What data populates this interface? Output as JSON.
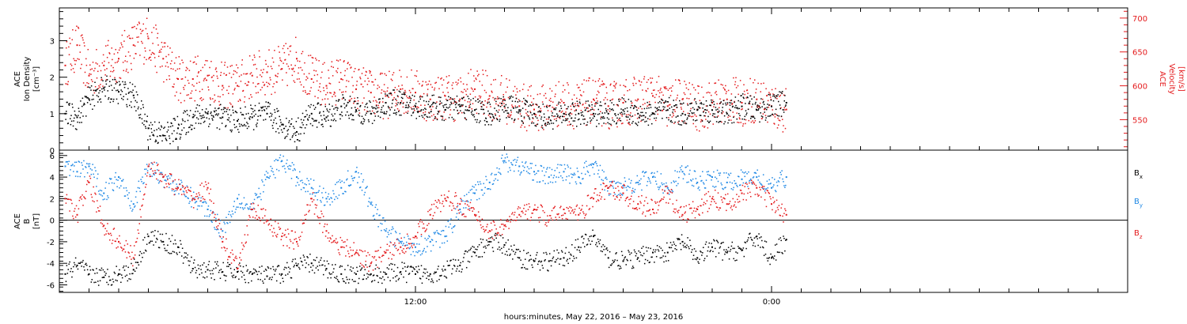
{
  "footer": {
    "xlabel": "hours:minutes, May 22, 2016 – May 23, 2016"
  },
  "chart_data": [
    {
      "type": "scatter",
      "panel": "plasma",
      "ylabel_left": [
        "ACE",
        "Ion Density",
        "[cm⁻³]"
      ],
      "ylabel_right": [
        "ACE",
        "Velocity",
        "[km/s]"
      ],
      "xlim_hours": [
        0,
        36
      ],
      "ylim_left": [
        0,
        3.9
      ],
      "ylim_right": [
        505,
        715
      ],
      "yticks_left": [
        0,
        1,
        2,
        3
      ],
      "yticks_right": [
        550,
        600,
        650,
        700
      ],
      "colors": {
        "density": "#000000",
        "velocity": "#e41a1c"
      },
      "series": [
        {
          "axis": "left",
          "color": "#000000",
          "x": [
            0.2,
            0.6,
            1.0,
            1.5,
            2.0,
            2.5,
            3.0,
            3.5,
            4.0,
            4.5,
            5.0,
            5.5,
            6.0,
            6.5,
            7.0,
            7.5,
            8.0,
            8.5,
            9.0,
            9.5,
            10.0,
            10.5,
            11.0,
            11.5,
            12.0,
            12.5,
            13.0,
            13.5,
            14.0,
            14.5,
            15.0,
            15.5,
            16.0,
            16.5,
            17.0,
            17.5,
            18.0,
            18.5,
            19.0,
            19.5,
            20.0,
            20.5,
            21.0,
            21.5,
            22.0,
            22.5,
            23.0,
            23.5,
            24.0,
            24.5
          ],
          "values": [
            1.0,
            0.9,
            1.4,
            1.7,
            1.6,
            1.5,
            0.6,
            0.4,
            0.6,
            0.9,
            1.0,
            0.9,
            0.8,
            0.9,
            1.0,
            0.7,
            0.5,
            1.0,
            0.9,
            1.2,
            1.1,
            1.0,
            1.3,
            1.3,
            1.2,
            1.2,
            1.1,
            1.2,
            1.1,
            1.0,
            1.2,
            1.1,
            1.0,
            0.9,
            1.0,
            1.0,
            1.0,
            1.0,
            1.1,
            1.0,
            1.0,
            1.1,
            1.0,
            1.1,
            1.1,
            1.0,
            1.2,
            1.1,
            1.2,
            1.3
          ]
        },
        {
          "axis": "right",
          "color": "#e41a1c",
          "x": [
            0.2,
            0.6,
            1.0,
            1.5,
            2.0,
            2.5,
            3.0,
            3.5,
            4.0,
            4.5,
            5.0,
            5.5,
            6.0,
            6.5,
            7.0,
            7.5,
            8.0,
            8.5,
            9.0,
            9.5,
            10.0,
            10.5,
            11.0,
            11.5,
            12.0,
            12.5,
            13.0,
            13.5,
            14.0,
            14.5,
            15.0,
            15.5,
            16.0,
            16.5,
            17.0,
            17.5,
            18.0,
            18.5,
            19.0,
            19.5,
            20.0,
            20.5,
            21.0,
            21.5,
            22.0,
            22.5,
            23.0,
            23.5,
            24.0,
            24.5
          ],
          "values": [
            630,
            660,
            615,
            630,
            640,
            660,
            670,
            640,
            610,
            610,
            615,
            600,
            600,
            615,
            620,
            625,
            640,
            610,
            600,
            610,
            595,
            590,
            585,
            595,
            590,
            580,
            585,
            580,
            595,
            585,
            580,
            570,
            565,
            570,
            575,
            570,
            580,
            570,
            575,
            580,
            585,
            570,
            580,
            565,
            575,
            580,
            575,
            580,
            570,
            565
          ]
        }
      ]
    },
    {
      "type": "scatter",
      "panel": "magnetic-field",
      "ylabel_left": [
        "ACE",
        "B",
        "[nT]"
      ],
      "xlim_hours": [
        0,
        36
      ],
      "ylim": [
        -6.7,
        6.5
      ],
      "yticks": [
        -6,
        -4,
        -2,
        0,
        2,
        4,
        6
      ],
      "xticks": [
        {
          "hour": 12,
          "label": "12:00"
        },
        {
          "hour": 24,
          "label": "0:00"
        }
      ],
      "legend_placement": "right",
      "series": [
        {
          "name": "Bx",
          "color": "#000000",
          "x": [
            0.2,
            0.6,
            1.0,
            1.5,
            2.0,
            2.5,
            3.0,
            3.5,
            4.0,
            4.5,
            5.0,
            5.5,
            6.0,
            6.5,
            7.0,
            7.5,
            8.0,
            8.5,
            9.0,
            9.5,
            10.0,
            10.5,
            11.0,
            11.5,
            12.0,
            12.5,
            13.0,
            13.5,
            14.0,
            14.5,
            15.0,
            15.5,
            16.0,
            16.5,
            17.0,
            17.5,
            18.0,
            18.5,
            19.0,
            19.5,
            20.0,
            20.5,
            21.0,
            21.5,
            22.0,
            22.5,
            23.0,
            23.5,
            24.0,
            24.5
          ],
          "values": [
            -5.0,
            -4.2,
            -5.0,
            -5.3,
            -5.0,
            -4.6,
            -1.5,
            -2.0,
            -2.5,
            -4.5,
            -4.6,
            -4.8,
            -4.8,
            -5.0,
            -5.2,
            -5.0,
            -4.2,
            -4.0,
            -4.5,
            -5.0,
            -5.0,
            -5.0,
            -5.0,
            -4.8,
            -5.0,
            -5.0,
            -4.6,
            -4.2,
            -3.0,
            -2.0,
            -2.3,
            -3.5,
            -3.8,
            -3.8,
            -3.5,
            -2.5,
            -1.5,
            -3.5,
            -3.8,
            -3.5,
            -3.0,
            -3.0,
            -2.0,
            -3.5,
            -2.5,
            -3.0,
            -2.8,
            -1.5,
            -3.5,
            -1.8
          ]
        },
        {
          "name": "By",
          "color": "#1e88e5",
          "x": [
            0.2,
            0.6,
            1.0,
            1.5,
            2.0,
            2.5,
            3.0,
            3.5,
            4.0,
            4.5,
            5.0,
            5.5,
            6.0,
            6.5,
            7.0,
            7.5,
            8.0,
            8.5,
            9.0,
            9.5,
            10.0,
            10.5,
            11.0,
            11.5,
            12.0,
            12.5,
            13.0,
            13.5,
            14.0,
            14.5,
            15.0,
            15.5,
            16.0,
            16.5,
            17.0,
            17.5,
            18.0,
            18.5,
            19.0,
            19.5,
            20.0,
            20.5,
            21.0,
            21.5,
            22.0,
            22.5,
            23.0,
            23.5,
            24.0,
            24.5
          ],
          "values": [
            5.0,
            4.5,
            5.0,
            2.5,
            4.0,
            1.5,
            5.0,
            4.0,
            3.0,
            2.0,
            1.0,
            -1.0,
            2.0,
            1.0,
            4.0,
            5.5,
            4.0,
            3.0,
            2.0,
            3.0,
            4.5,
            1.5,
            -1.0,
            -2.0,
            -2.5,
            -2.0,
            -1.5,
            1.0,
            2.5,
            3.5,
            5.5,
            5.0,
            4.5,
            4.0,
            4.5,
            4.0,
            5.2,
            3.0,
            3.2,
            3.5,
            4.0,
            3.0,
            4.5,
            3.5,
            4.0,
            3.5,
            3.8,
            4.0,
            3.0,
            4.0
          ]
        },
        {
          "name": "Bz",
          "color": "#e41a1c",
          "x": [
            0.2,
            0.6,
            1.0,
            1.5,
            2.0,
            2.5,
            3.0,
            3.5,
            4.0,
            4.5,
            5.0,
            5.5,
            6.0,
            6.5,
            7.0,
            7.5,
            8.0,
            8.5,
            9.0,
            9.5,
            10.0,
            10.5,
            11.0,
            11.5,
            12.0,
            12.5,
            13.0,
            13.5,
            14.0,
            14.5,
            15.0,
            15.5,
            16.0,
            16.5,
            17.0,
            17.5,
            18.0,
            18.5,
            19.0,
            19.5,
            20.0,
            20.5,
            21.0,
            21.5,
            22.0,
            22.5,
            23.0,
            23.5,
            24.0,
            24.5
          ],
          "values": [
            2.0,
            0.5,
            3.5,
            -0.5,
            -2.0,
            -3.5,
            5.0,
            4.0,
            3.0,
            2.0,
            3.0,
            -2.0,
            -4.5,
            1.0,
            0.0,
            -1.5,
            -2.0,
            2.0,
            -1.0,
            -2.5,
            -3.0,
            -4.0,
            -3.0,
            -2.5,
            -1.5,
            0.5,
            2.0,
            1.5,
            0.5,
            -1.0,
            -0.5,
            0.5,
            1.0,
            0.0,
            1.0,
            0.5,
            2.0,
            3.0,
            2.5,
            1.5,
            1.0,
            2.5,
            0.5,
            1.0,
            2.0,
            1.5,
            2.5,
            3.0,
            1.5,
            0.5
          ]
        }
      ]
    }
  ]
}
